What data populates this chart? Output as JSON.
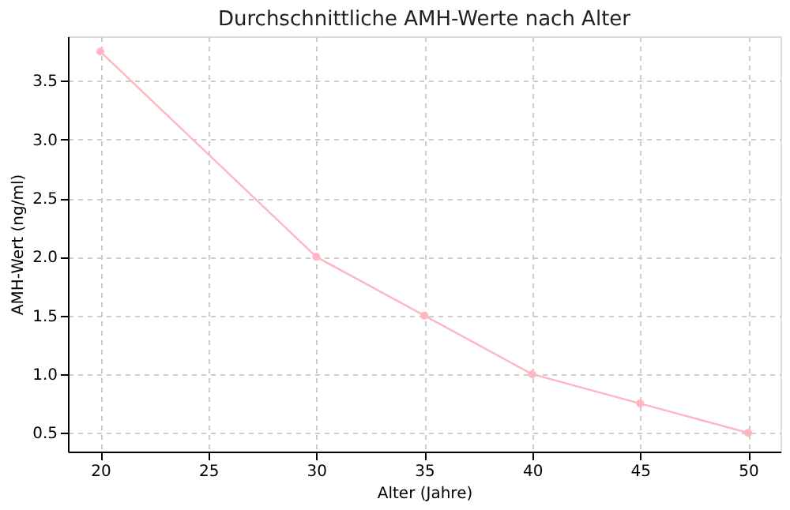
{
  "chart_data": {
    "type": "line",
    "title": "Durchschnittliche AMH-Werte nach Alter",
    "xlabel": "Alter (Jahre)",
    "ylabel": "AMH-Wert (ng/ml)",
    "x": [
      20,
      30,
      35,
      40,
      45,
      50
    ],
    "series": [
      {
        "color": "#ffb6c1",
        "values": [
          3.75,
          2.0,
          1.5,
          1.0,
          0.75,
          0.5
        ]
      }
    ],
    "xlim": [
      18.5,
      51.5
    ],
    "xticks": [
      20,
      25,
      30,
      35,
      40,
      45,
      50
    ],
    "ylim": [
      0.34,
      3.88
    ],
    "yticks": [
      0.5,
      {
        "value": 1,
        "label": "1.0"
      },
      1.5,
      {
        "value": 2,
        "label": "2.0"
      },
      2.5,
      {
        "value": 3,
        "label": "3.0"
      },
      3.5
    ],
    "grid": true,
    "marker": "circle",
    "line_style": "solid"
  }
}
